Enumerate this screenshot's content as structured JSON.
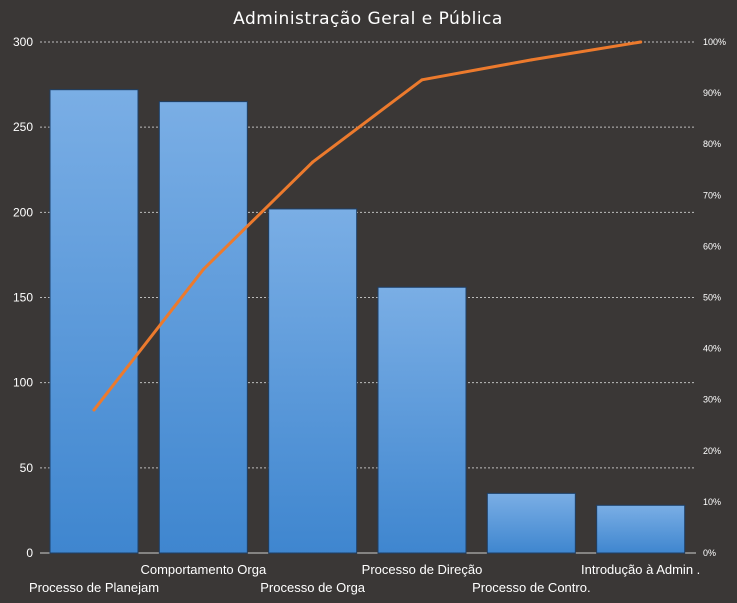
{
  "chart_data": {
    "type": "bar",
    "title": "Administração  Geral  e  Pública",
    "categories": [
      "Processo de Planejam",
      "Comportamento Orga",
      "Processo de Orga",
      "Processo de Direção",
      "Processo de Contro.",
      "Introdução à Admin ."
    ],
    "series": [
      {
        "type": "bar",
        "values": [
          272,
          265,
          202,
          156,
          35,
          28
        ]
      },
      {
        "type": "line",
        "axis": "secondary",
        "values": [
          28.0,
          55.5,
          76.5,
          92.6,
          96.5,
          100.0
        ]
      }
    ],
    "y_ticks": [
      "0",
      "50",
      "100",
      "150",
      "200",
      "250",
      "300"
    ],
    "y2_ticks": [
      "0%",
      "10%",
      "20%",
      "30%",
      "40%",
      "50%",
      "60%",
      "70%",
      "80%",
      "90%",
      "100%"
    ],
    "ylim": [
      0,
      300
    ],
    "y2lim": [
      0,
      100
    ],
    "grid": true,
    "colors": {
      "background": "#3a3736",
      "bar_top": "#7aaee5",
      "bar_bottom": "#3f86cf",
      "bar_edge": "#1e3f66",
      "line": "#ec7a2d",
      "grid": "#bdbdbd",
      "text": "#ffffff"
    }
  }
}
